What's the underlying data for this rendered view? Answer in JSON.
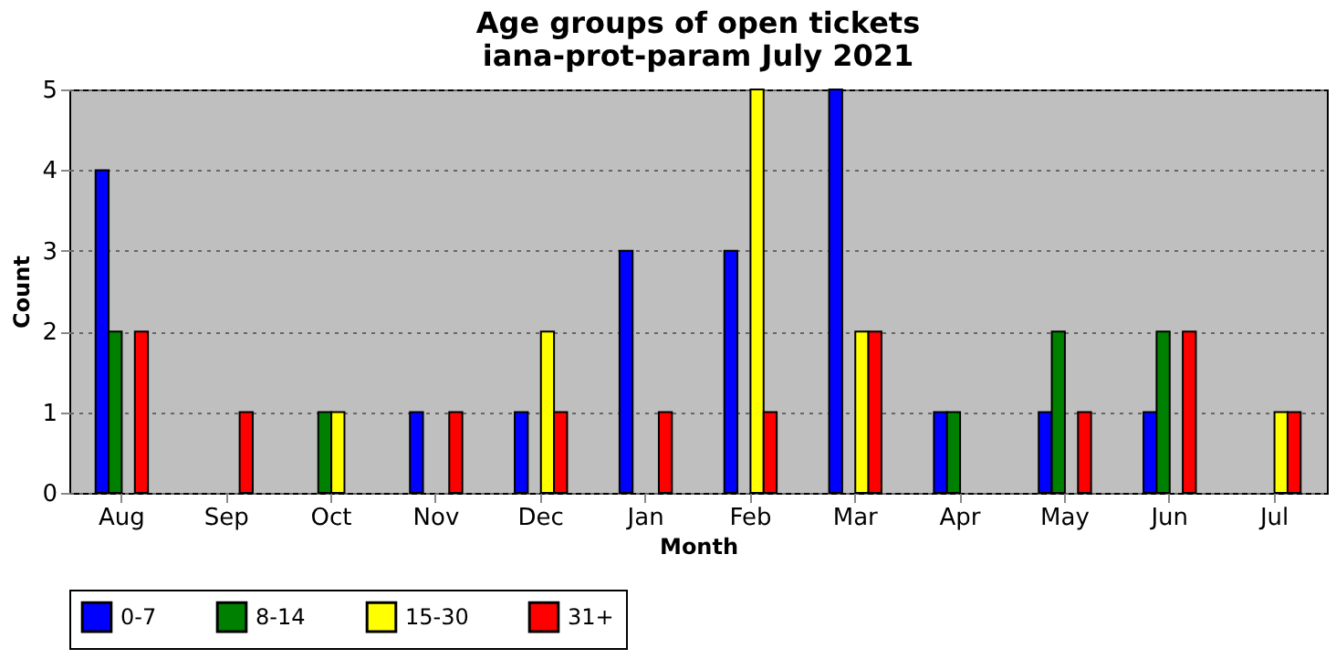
{
  "chart_data": {
    "type": "bar",
    "title": "Age groups of open tickets",
    "subtitle": "iana-prot-param July 2021",
    "xlabel": "Month",
    "ylabel": "Count",
    "categories": [
      "Aug",
      "Sep",
      "Oct",
      "Nov",
      "Dec",
      "Jan",
      "Feb",
      "Mar",
      "Apr",
      "May",
      "Jun",
      "Jul"
    ],
    "series": [
      {
        "name": "0-7",
        "color": "#0000ff",
        "values": [
          4,
          0,
          0,
          1,
          1,
          3,
          3,
          5,
          1,
          1,
          1,
          0
        ]
      },
      {
        "name": "8-14",
        "color": "#008000",
        "values": [
          2,
          0,
          1,
          0,
          0,
          0,
          0,
          0,
          1,
          2,
          2,
          0
        ]
      },
      {
        "name": "15-30",
        "color": "#ffff00",
        "values": [
          0,
          0,
          1,
          0,
          2,
          0,
          5,
          2,
          0,
          0,
          0,
          1
        ]
      },
      {
        "name": "31+",
        "color": "#ff0000",
        "values": [
          2,
          1,
          0,
          1,
          1,
          1,
          1,
          2,
          0,
          1,
          2,
          1
        ]
      }
    ],
    "ylim": [
      0,
      5
    ],
    "yticks": [
      0,
      1,
      2,
      3,
      4,
      5
    ],
    "grid": "y",
    "legend": "bottom"
  }
}
